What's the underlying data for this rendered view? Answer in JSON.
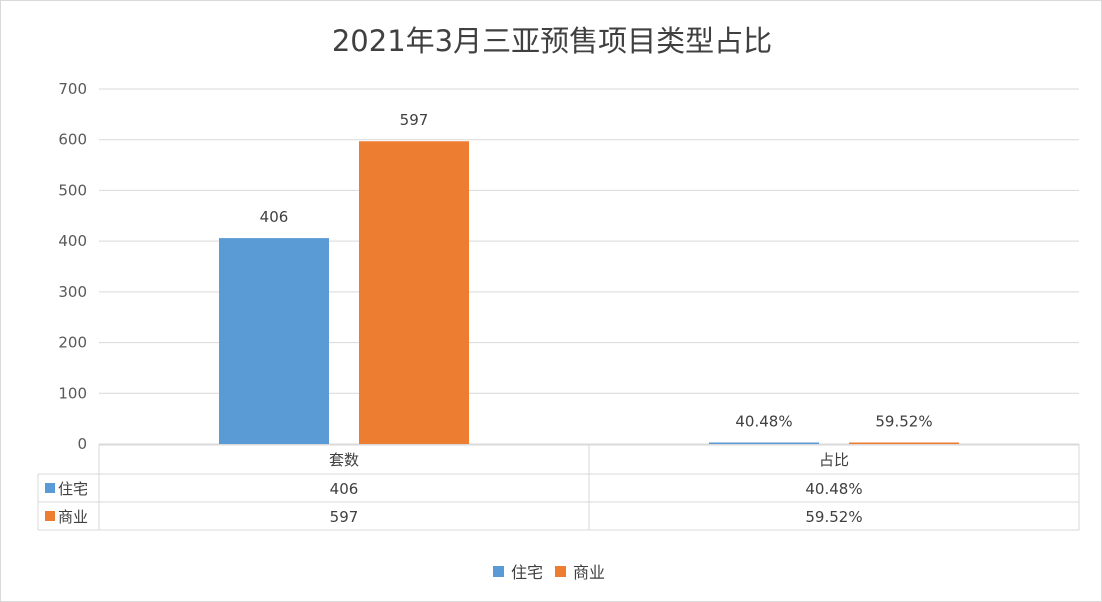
{
  "chart_data": {
    "type": "bar",
    "title": "2021年3月三亚预售项目类型占比",
    "categories": [
      "套数",
      "占比"
    ],
    "series": [
      {
        "name": "住宅",
        "color": "#5b9bd5",
        "values": [
          406,
          0.4048
        ],
        "labels": [
          "406",
          "40.48%"
        ]
      },
      {
        "name": "商业",
        "color": "#ed7d31",
        "values": [
          597,
          0.5952
        ],
        "labels": [
          "597",
          "59.52%"
        ]
      }
    ],
    "yticks": [
      "0",
      "100",
      "200",
      "300",
      "400",
      "500",
      "600",
      "700"
    ],
    "ylim": [
      0,
      700
    ],
    "grid": true,
    "data_table": true,
    "legend_position": "bottom"
  }
}
